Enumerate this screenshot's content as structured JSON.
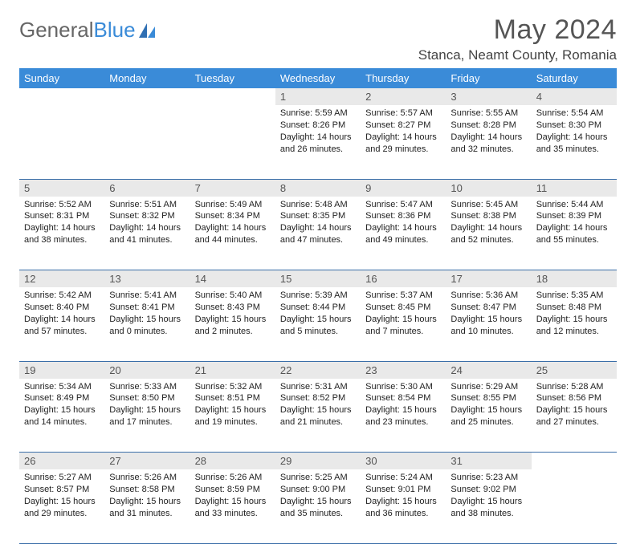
{
  "brand": {
    "part1": "General",
    "part2": "Blue"
  },
  "title": "May 2024",
  "location": "Stanca, Neamt County, Romania",
  "colors": {
    "header_bg": "#3a8bd8",
    "header_text": "#ffffff",
    "daynum_bg": "#e9e9e9",
    "rule": "#3a6ea8",
    "body_text": "#222222",
    "title_text": "#555555"
  },
  "weekdays": [
    "Sunday",
    "Monday",
    "Tuesday",
    "Wednesday",
    "Thursday",
    "Friday",
    "Saturday"
  ],
  "weeks": [
    [
      null,
      null,
      null,
      {
        "n": "1",
        "sr": "5:59 AM",
        "ss": "8:26 PM",
        "dl": "14 hours and 26 minutes."
      },
      {
        "n": "2",
        "sr": "5:57 AM",
        "ss": "8:27 PM",
        "dl": "14 hours and 29 minutes."
      },
      {
        "n": "3",
        "sr": "5:55 AM",
        "ss": "8:28 PM",
        "dl": "14 hours and 32 minutes."
      },
      {
        "n": "4",
        "sr": "5:54 AM",
        "ss": "8:30 PM",
        "dl": "14 hours and 35 minutes."
      }
    ],
    [
      {
        "n": "5",
        "sr": "5:52 AM",
        "ss": "8:31 PM",
        "dl": "14 hours and 38 minutes."
      },
      {
        "n": "6",
        "sr": "5:51 AM",
        "ss": "8:32 PM",
        "dl": "14 hours and 41 minutes."
      },
      {
        "n": "7",
        "sr": "5:49 AM",
        "ss": "8:34 PM",
        "dl": "14 hours and 44 minutes."
      },
      {
        "n": "8",
        "sr": "5:48 AM",
        "ss": "8:35 PM",
        "dl": "14 hours and 47 minutes."
      },
      {
        "n": "9",
        "sr": "5:47 AM",
        "ss": "8:36 PM",
        "dl": "14 hours and 49 minutes."
      },
      {
        "n": "10",
        "sr": "5:45 AM",
        "ss": "8:38 PM",
        "dl": "14 hours and 52 minutes."
      },
      {
        "n": "11",
        "sr": "5:44 AM",
        "ss": "8:39 PM",
        "dl": "14 hours and 55 minutes."
      }
    ],
    [
      {
        "n": "12",
        "sr": "5:42 AM",
        "ss": "8:40 PM",
        "dl": "14 hours and 57 minutes."
      },
      {
        "n": "13",
        "sr": "5:41 AM",
        "ss": "8:41 PM",
        "dl": "15 hours and 0 minutes."
      },
      {
        "n": "14",
        "sr": "5:40 AM",
        "ss": "8:43 PM",
        "dl": "15 hours and 2 minutes."
      },
      {
        "n": "15",
        "sr": "5:39 AM",
        "ss": "8:44 PM",
        "dl": "15 hours and 5 minutes."
      },
      {
        "n": "16",
        "sr": "5:37 AM",
        "ss": "8:45 PM",
        "dl": "15 hours and 7 minutes."
      },
      {
        "n": "17",
        "sr": "5:36 AM",
        "ss": "8:47 PM",
        "dl": "15 hours and 10 minutes."
      },
      {
        "n": "18",
        "sr": "5:35 AM",
        "ss": "8:48 PM",
        "dl": "15 hours and 12 minutes."
      }
    ],
    [
      {
        "n": "19",
        "sr": "5:34 AM",
        "ss": "8:49 PM",
        "dl": "15 hours and 14 minutes."
      },
      {
        "n": "20",
        "sr": "5:33 AM",
        "ss": "8:50 PM",
        "dl": "15 hours and 17 minutes."
      },
      {
        "n": "21",
        "sr": "5:32 AM",
        "ss": "8:51 PM",
        "dl": "15 hours and 19 minutes."
      },
      {
        "n": "22",
        "sr": "5:31 AM",
        "ss": "8:52 PM",
        "dl": "15 hours and 21 minutes."
      },
      {
        "n": "23",
        "sr": "5:30 AM",
        "ss": "8:54 PM",
        "dl": "15 hours and 23 minutes."
      },
      {
        "n": "24",
        "sr": "5:29 AM",
        "ss": "8:55 PM",
        "dl": "15 hours and 25 minutes."
      },
      {
        "n": "25",
        "sr": "5:28 AM",
        "ss": "8:56 PM",
        "dl": "15 hours and 27 minutes."
      }
    ],
    [
      {
        "n": "26",
        "sr": "5:27 AM",
        "ss": "8:57 PM",
        "dl": "15 hours and 29 minutes."
      },
      {
        "n": "27",
        "sr": "5:26 AM",
        "ss": "8:58 PM",
        "dl": "15 hours and 31 minutes."
      },
      {
        "n": "28",
        "sr": "5:26 AM",
        "ss": "8:59 PM",
        "dl": "15 hours and 33 minutes."
      },
      {
        "n": "29",
        "sr": "5:25 AM",
        "ss": "9:00 PM",
        "dl": "15 hours and 35 minutes."
      },
      {
        "n": "30",
        "sr": "5:24 AM",
        "ss": "9:01 PM",
        "dl": "15 hours and 36 minutes."
      },
      {
        "n": "31",
        "sr": "5:23 AM",
        "ss": "9:02 PM",
        "dl": "15 hours and 38 minutes."
      },
      null
    ]
  ],
  "labels": {
    "sunrise": "Sunrise:",
    "sunset": "Sunset:",
    "daylight": "Daylight:"
  }
}
